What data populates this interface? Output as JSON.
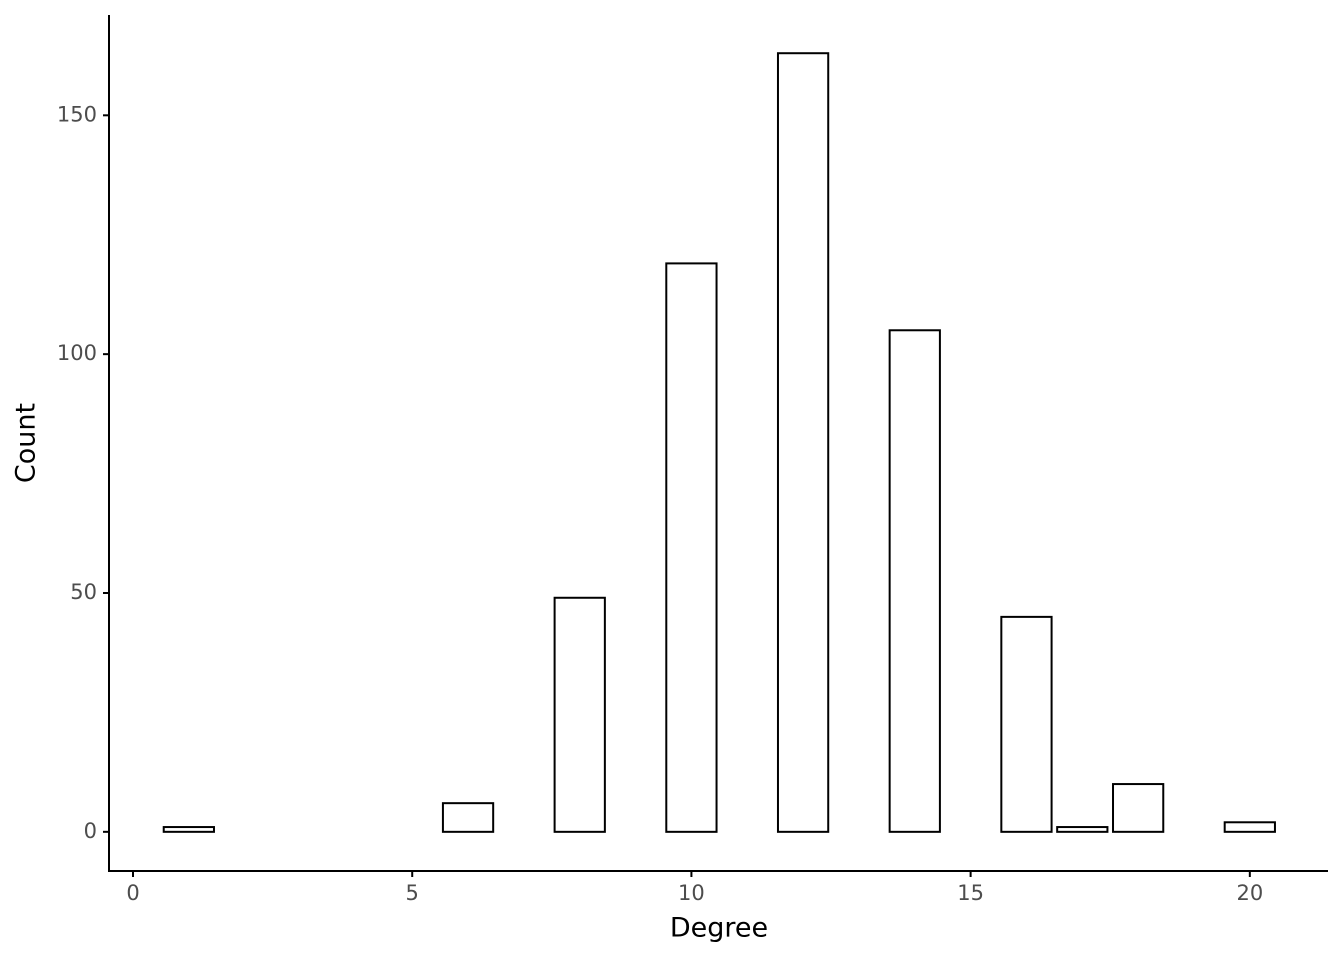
{
  "chart_data": {
    "type": "bar",
    "x_label": "Degree",
    "y_label": "Count",
    "x": [
      1,
      6,
      8,
      10,
      12,
      14,
      16,
      17,
      18,
      20
    ],
    "values": [
      1,
      6,
      49,
      119,
      163,
      105,
      45,
      1,
      10,
      2
    ],
    "color": "#ffffff",
    "edge_color": "#000000",
    "xlim": [
      -0.43,
      21.4
    ],
    "xticks": [
      0,
      5,
      10,
      15,
      20
    ],
    "ylim": [
      -8.2,
      171
    ],
    "yticks": [
      0,
      50,
      100,
      150
    ],
    "grid": false
  }
}
